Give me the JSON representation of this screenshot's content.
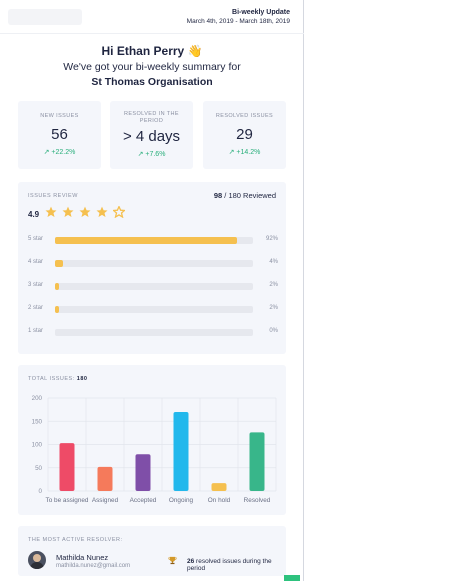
{
  "header": {
    "title": "Bi-weekly Update",
    "dates": "March 4th, 2019 - March 18th, 2019"
  },
  "greeting": {
    "name_line": "Hi Ethan Perry 👋",
    "summary_line": "We've got your bi-weekly summary for",
    "organisation": "St Thomas Organisation"
  },
  "stats": [
    {
      "label": "NEW ISSUES",
      "value": "56",
      "change": "↗ +22.2%"
    },
    {
      "label": "RESOLVED IN THE PERIOD",
      "value": "> 4 days",
      "change": "↗ +7.6%"
    },
    {
      "label": "RESOLVED ISSUES",
      "value": "29",
      "change": "↗ +14.2%"
    }
  ],
  "review": {
    "label": "ISSUES REVIEW",
    "reviewed_count": "98",
    "reviewed_suffix": "/ 180 Reviewed",
    "rating": "4.9",
    "stars_filled": 4.5,
    "star_color": "#f5c04f",
    "rows": [
      {
        "label": "5 star",
        "percent_text": "92%",
        "fraction": 0.92
      },
      {
        "label": "4 star",
        "percent_text": "4%",
        "fraction": 0.04
      },
      {
        "label": "3 star",
        "percent_text": "2%",
        "fraction": 0.02
      },
      {
        "label": "2 star",
        "percent_text": "2%",
        "fraction": 0.02
      },
      {
        "label": "1 star",
        "percent_text": "0%",
        "fraction": 0.0
      }
    ]
  },
  "chart_data": {
    "type": "bar",
    "title": "TOTAL ISSUES: 180",
    "title_prefix": "TOTAL ISSUES:",
    "title_value": "180",
    "categories": [
      "To be assigned",
      "Assigned",
      "Accepted",
      "Ongoing",
      "On hold",
      "Resolved"
    ],
    "values": [
      103,
      52,
      79,
      170,
      17,
      126
    ],
    "colors": [
      "#ee4b67",
      "#f57a5b",
      "#7f4fa8",
      "#22b8ec",
      "#f5c04f",
      "#38b68a"
    ],
    "ylim": [
      0,
      200
    ],
    "yticks": [
      0,
      50,
      100,
      150,
      200
    ],
    "grid": true
  },
  "resolver": {
    "label": "THE MOST ACTIVE RESOLVER:",
    "name": "Mathilda Nunez",
    "email": "mathilda.nunez@gmail.com",
    "count": "26",
    "count_suffix": "resolved issues during the period"
  }
}
